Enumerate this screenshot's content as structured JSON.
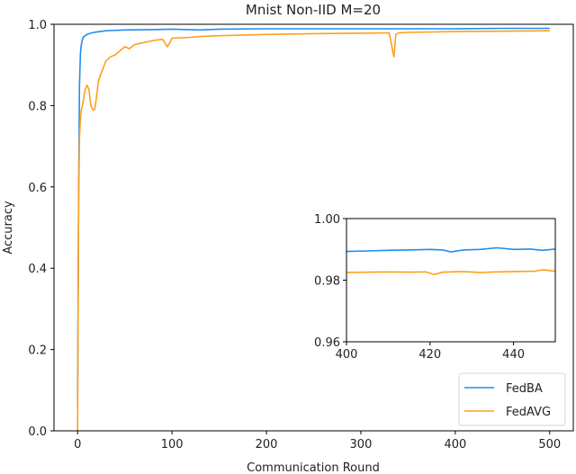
{
  "chart_data": {
    "type": "line",
    "title": "Mnist Non-IID M=20",
    "xlabel": "Communication Round",
    "ylabel": "Accuracy",
    "xlim": [
      -25,
      525
    ],
    "ylim": [
      0.0,
      1.0
    ],
    "xticks": [
      0,
      100,
      200,
      300,
      400,
      500
    ],
    "yticks": [
      0.0,
      0.2,
      0.4,
      0.6,
      0.8,
      1.0
    ],
    "xtick_labels": [
      "0",
      "100",
      "200",
      "300",
      "400",
      "500"
    ],
    "ytick_labels": [
      "0.0",
      "0.2",
      "0.4",
      "0.6",
      "0.8",
      "1.0"
    ],
    "grid": false,
    "legend_position": "lower right",
    "series": [
      {
        "name": "FedBA",
        "color": "#1f8ef1",
        "x": [
          0,
          1,
          2,
          3,
          4,
          5,
          6,
          8,
          10,
          15,
          20,
          30,
          50,
          80,
          100,
          130,
          150,
          200,
          250,
          300,
          350,
          400,
          450,
          500
        ],
        "values": [
          0.06,
          0.55,
          0.85,
          0.93,
          0.95,
          0.962,
          0.968,
          0.972,
          0.975,
          0.979,
          0.981,
          0.984,
          0.986,
          0.987,
          0.988,
          0.986,
          0.988,
          0.989,
          0.989,
          0.989,
          0.989,
          0.989,
          0.99,
          0.99
        ]
      },
      {
        "name": "FedAVG",
        "color": "#ff9f1c",
        "x": [
          0,
          1,
          2,
          3,
          4,
          6,
          8,
          10,
          12,
          14,
          16,
          18,
          20,
          22,
          25,
          30,
          35,
          40,
          45,
          50,
          55,
          60,
          70,
          80,
          90,
          95,
          97,
          100,
          120,
          130,
          150,
          200,
          250,
          300,
          330,
          335,
          337,
          340,
          350,
          400,
          450,
          500
        ],
        "values": [
          0.0,
          0.55,
          0.72,
          0.77,
          0.79,
          0.81,
          0.84,
          0.85,
          0.84,
          0.8,
          0.79,
          0.79,
          0.82,
          0.86,
          0.88,
          0.91,
          0.92,
          0.925,
          0.935,
          0.945,
          0.94,
          0.95,
          0.955,
          0.96,
          0.963,
          0.945,
          0.952,
          0.966,
          0.968,
          0.97,
          0.972,
          0.975,
          0.977,
          0.978,
          0.979,
          0.92,
          0.975,
          0.979,
          0.98,
          0.982,
          0.983,
          0.984
        ]
      }
    ],
    "inset": {
      "xlim": [
        400,
        450
      ],
      "ylim": [
        0.96,
        1.0
      ],
      "xticks": [
        400,
        420,
        440
      ],
      "yticks": [
        0.96,
        0.98,
        1.0
      ],
      "xtick_labels": [
        "400",
        "420",
        "440"
      ],
      "ytick_labels": [
        "0.96",
        "0.98",
        "1.00"
      ],
      "series": [
        {
          "name": "FedBA",
          "x": [
            400,
            405,
            410,
            415,
            420,
            423,
            425,
            428,
            432,
            436,
            440,
            444,
            447,
            450
          ],
          "values": [
            0.9893,
            0.9895,
            0.9897,
            0.9898,
            0.99,
            0.9898,
            0.9892,
            0.9898,
            0.99,
            0.9905,
            0.99,
            0.9901,
            0.9897,
            0.9901
          ]
        },
        {
          "name": "FedAVG",
          "x": [
            400,
            405,
            410,
            415,
            419,
            421,
            423,
            428,
            432,
            436,
            440,
            445,
            447,
            450
          ],
          "values": [
            0.9825,
            0.9826,
            0.9827,
            0.9826,
            0.9827,
            0.9818,
            0.9826,
            0.9828,
            0.9825,
            0.9827,
            0.9828,
            0.9829,
            0.9834,
            0.9829
          ]
        }
      ]
    }
  }
}
